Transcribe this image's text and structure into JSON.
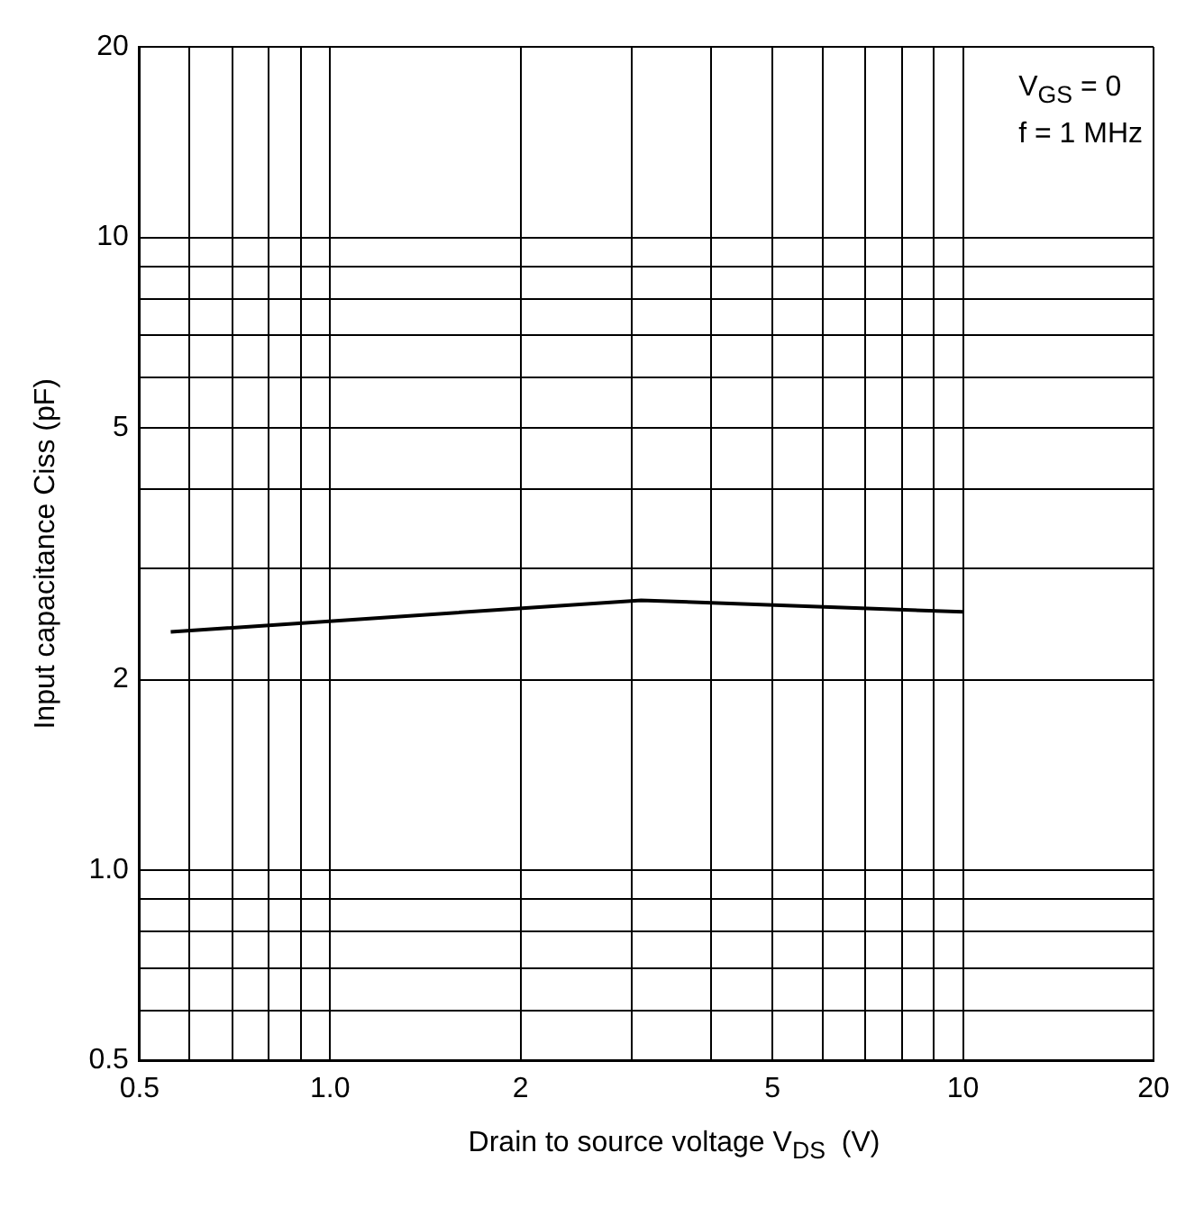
{
  "chart_data": {
    "type": "line",
    "xlabel": "Drain to source voltage V$_{DS}$  (V)",
    "ylabel": "Input capacitance Ciss (pF)",
    "annotations": [
      "V$_{GS}$ = 0",
      "f = 1 MHz"
    ],
    "log": "xy",
    "grid": true,
    "legend": false,
    "marker": "none",
    "line_style": "solid",
    "xlim": [
      0.5,
      20
    ],
    "ylim": [
      0.5,
      20
    ],
    "xticks": [
      0.5,
      {
        "value": 0.6,
        "label": null
      },
      {
        "value": 0.7,
        "label": null
      },
      {
        "value": 0.8,
        "label": null
      },
      {
        "value": 0.9,
        "label": null
      },
      {
        "value": 1,
        "label": "1.0"
      },
      2,
      {
        "value": 3,
        "label": null
      },
      {
        "value": 4,
        "label": null
      },
      5,
      {
        "value": 6,
        "label": null
      },
      {
        "value": 7,
        "label": null
      },
      {
        "value": 8,
        "label": null
      },
      {
        "value": 9,
        "label": null
      },
      10,
      20
    ],
    "yticks": [
      0.5,
      {
        "value": 0.6,
        "label": null
      },
      {
        "value": 0.7,
        "label": null
      },
      {
        "value": 0.8,
        "label": null
      },
      {
        "value": 0.9,
        "label": null
      },
      {
        "value": 1,
        "label": "1.0"
      },
      2,
      {
        "value": 3,
        "label": null
      },
      {
        "value": 4,
        "label": null
      },
      5,
      {
        "value": 6,
        "label": null
      },
      {
        "value": 7,
        "label": null
      },
      {
        "value": 8,
        "label": null
      },
      {
        "value": 9,
        "label": null
      },
      10,
      20
    ],
    "series": [
      {
        "color": "#000000",
        "x": [
          0.56,
          3.1,
          10
        ],
        "values": [
          2.38,
          2.67,
          2.56
        ]
      }
    ]
  }
}
